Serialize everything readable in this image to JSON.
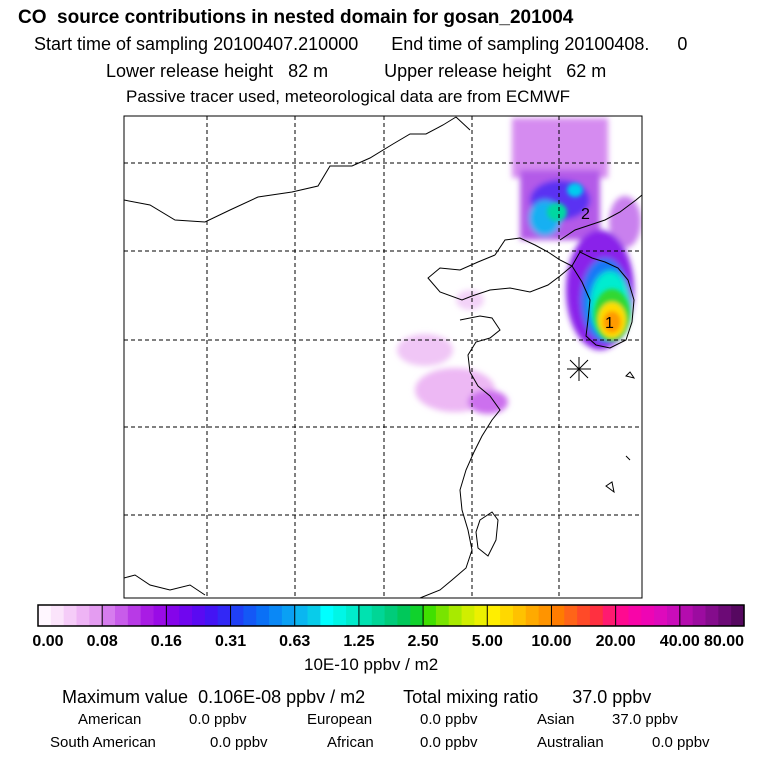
{
  "header": {
    "title": "CO  source contributions in nested domain for gosan_201004",
    "start_label": "Start time of sampling 20100407.210000",
    "end_label": "End time of sampling 20100408.",
    "end_value": "0",
    "lower_label": "Lower release height   82 m",
    "upper_label": "Upper release height   62 m",
    "note": "Passive tracer used, meteorological data are from ECMWF"
  },
  "chart_data": {
    "type": "heatmap",
    "title": "CO  source contributions in nested domain for gosan_201004",
    "grid": true,
    "markers": [
      {
        "label": "1",
        "kind": "maximum"
      },
      {
        "label": "2",
        "kind": "secondary maximum"
      },
      {
        "label": "",
        "kind": "receptor (gosan)"
      }
    ],
    "colorbar": {
      "ticks": [
        "0.00",
        "0.08",
        "0.16",
        "0.31",
        "0.63",
        "1.25",
        "2.50",
        "5.00",
        "10.00",
        "20.00",
        "40.00",
        "80.00"
      ],
      "colors": [
        "#fff7ff",
        "#fbe4fb",
        "#f5ccf8",
        "#eeb4f5",
        "#e49cf1",
        "#d67cee",
        "#c85cea",
        "#b83ae6",
        "#a91ce4",
        "#9a0be6",
        "#8505ea",
        "#7006ef",
        "#5a0af2",
        "#4414f4",
        "#3228f6",
        "#2040f6",
        "#1458f6",
        "#0a70f6",
        "#0a88f6",
        "#0aa0f4",
        "#0ab6f0",
        "#08ccea",
        "#00ffff",
        "#00f6e6",
        "#00eccc",
        "#00e2b0",
        "#00d696",
        "#00cc7a",
        "#00c85a",
        "#10d22c",
        "#40e000",
        "#78e400",
        "#a8ea00",
        "#d0ee00",
        "#ecf000",
        "#ffee00",
        "#ffd800",
        "#ffc200",
        "#ffaa00",
        "#ff9400",
        "#ff7c00",
        "#ff6418",
        "#ff4a28",
        "#ff3040",
        "#ff1a70",
        "#ff0a90",
        "#f805a8",
        "#ee05b4",
        "#de0abc",
        "#ca0cba",
        "#b40cae",
        "#9c0ca0",
        "#840c8c",
        "#6c0a76",
        "#560860"
      ],
      "units": "10E-10 ppbv / m2"
    },
    "summary": {
      "max_label": "Maximum value",
      "max_value": "0.106E-08 ppbv / m2",
      "total_label": "Total mixing ratio",
      "total_value": "37.0 ppbv"
    },
    "regions": [
      {
        "name": "American",
        "value": "0.0 ppbv"
      },
      {
        "name": "European",
        "value": "0.0 ppbv"
      },
      {
        "name": "Asian",
        "value": "37.0 ppbv"
      },
      {
        "name": "South American",
        "value": "0.0 ppbv"
      },
      {
        "name": "African",
        "value": "0.0 ppbv"
      },
      {
        "name": "Australian",
        "value": "0.0 ppbv"
      }
    ]
  }
}
